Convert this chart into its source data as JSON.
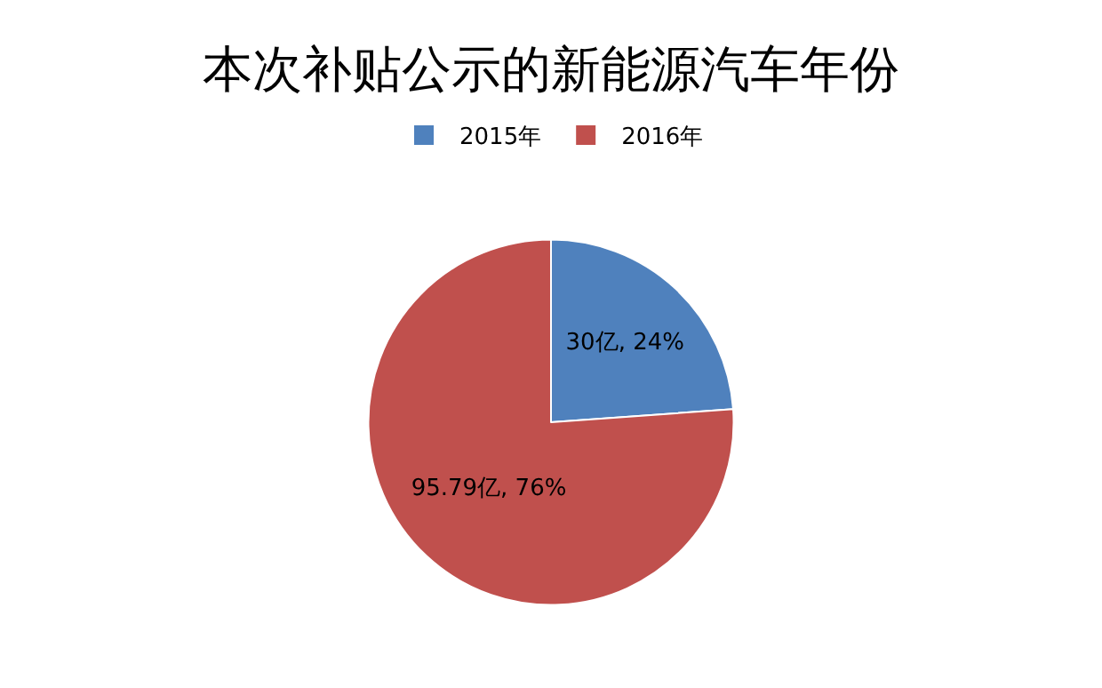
{
  "chart_data": {
    "type": "pie",
    "title": "本次补贴公示的新能源汽车年份",
    "categories": [
      "2015年",
      "2016年"
    ],
    "values": [
      30,
      95.79
    ],
    "value_labels": [
      "30亿, 24%",
      "95.79亿, 76%"
    ],
    "colors": [
      "#4f81bd",
      "#c0504d"
    ],
    "legend": "top"
  }
}
